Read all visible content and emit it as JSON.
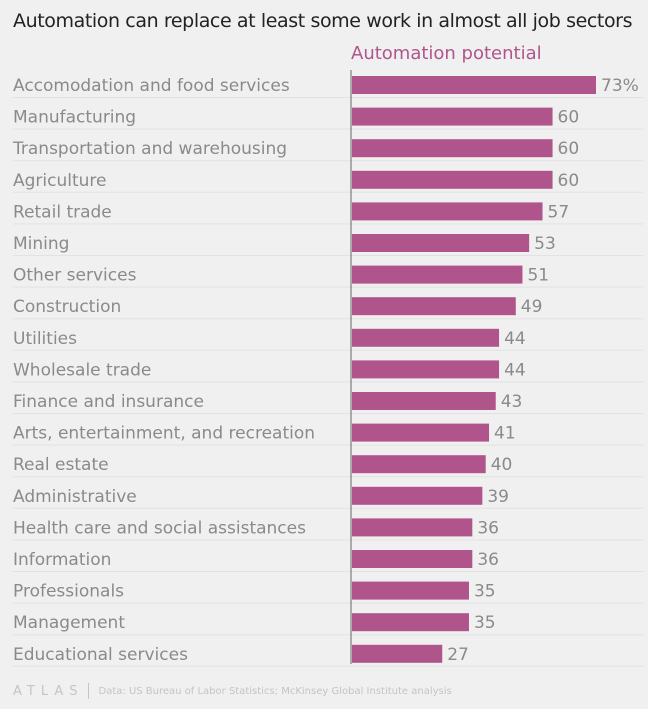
{
  "chart_data": {
    "type": "bar",
    "orientation": "horizontal",
    "title": "Automation can replace at least some work in almost all job sectors",
    "series_header": "Automation potential",
    "value_suffix_first": "%",
    "categories": [
      "Accomodation and food services",
      "Manufacturing",
      "Transportation and warehousing",
      "Agriculture",
      "Retail trade",
      "Mining",
      "Other services",
      "Construction",
      "Utilities",
      "Wholesale trade",
      "Finance and insurance",
      "Arts, entertainment, and recreation",
      "Real estate",
      "Administrative",
      "Health care and social assistances",
      "Information",
      "Professionals",
      "Management",
      "Educational services"
    ],
    "values": [
      73,
      60,
      60,
      60,
      57,
      53,
      51,
      49,
      44,
      44,
      43,
      41,
      40,
      39,
      36,
      36,
      35,
      35,
      27
    ],
    "xlim": [
      0,
      73
    ],
    "bar_color": "#b0558c",
    "grid": true
  },
  "footer": {
    "logo": "ATLAS",
    "source": "Data: US Bureau of Labor Statistics; McKinsey Global Institute analysis"
  }
}
